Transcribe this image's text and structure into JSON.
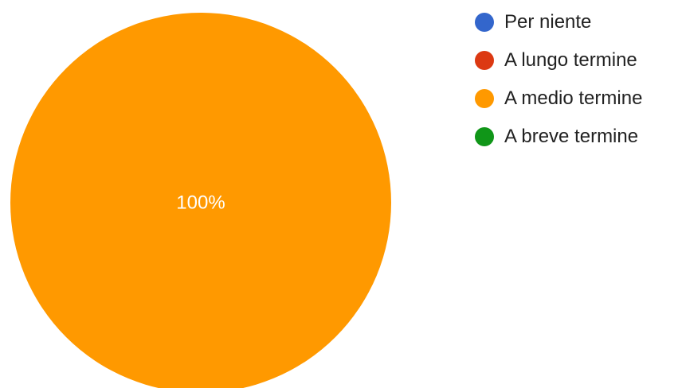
{
  "chart_data": {
    "type": "pie",
    "categories": [
      "Per niente",
      "A lungo termine",
      "A medio termine",
      "A breve termine"
    ],
    "values": [
      0,
      0,
      100,
      0
    ],
    "colors": [
      "#3366cc",
      "#dc3912",
      "#ff9900",
      "#109618"
    ],
    "data_labels": [
      "",
      "",
      "100%",
      ""
    ],
    "legend_position": "right"
  }
}
